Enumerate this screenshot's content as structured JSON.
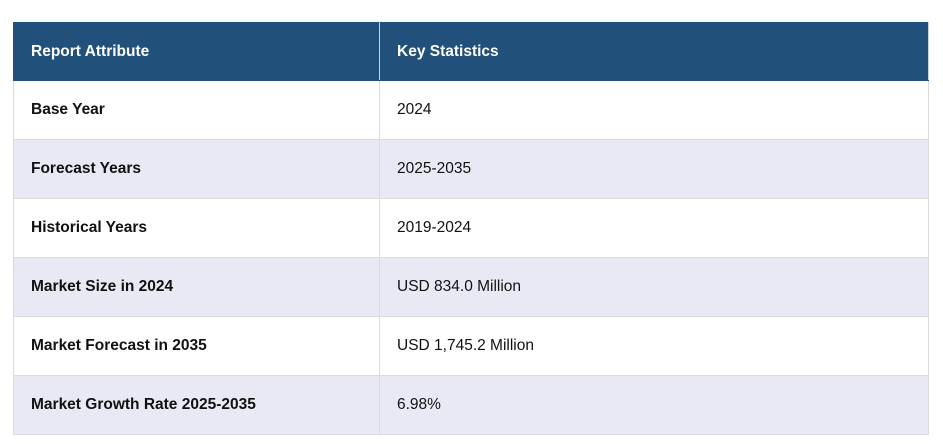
{
  "table": {
    "header": [
      "Report Attribute",
      "Key Statistics"
    ],
    "rows": [
      [
        "Base Year",
        "2024"
      ],
      [
        "Forecast Years",
        "2025-2035"
      ],
      [
        "Historical Years",
        "2019-2024"
      ],
      [
        "Market Size in 2024",
        "USD 834.0 Million"
      ],
      [
        "Market Forecast in 2035",
        "USD 1,745.2 Million"
      ],
      [
        "Market Growth Rate 2025-2035",
        "6.98%"
      ]
    ]
  }
}
